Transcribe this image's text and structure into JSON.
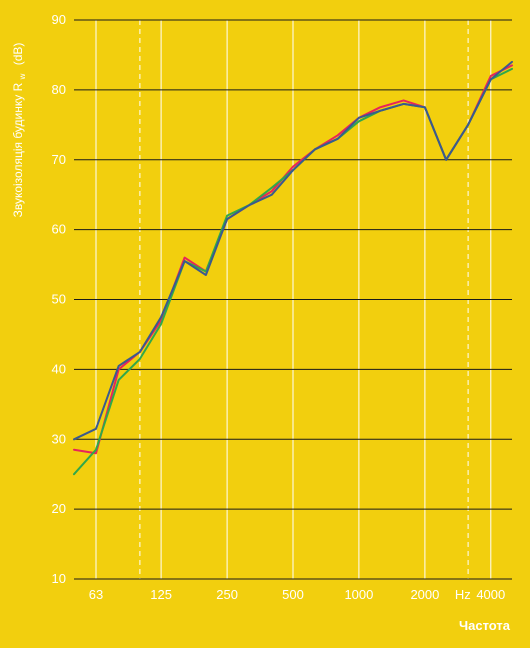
{
  "chart_data": {
    "type": "line",
    "ylabel": "Звукоізоляція будинку",
    "ylabel_sym": "R",
    "ylabel_sub": "w",
    "ylabel_unit": "(dB)",
    "xlabel": "Частота",
    "x_unit": "Hz",
    "ylim": [
      10,
      90
    ],
    "yticks": [
      10,
      20,
      30,
      40,
      50,
      60,
      70,
      80,
      90
    ],
    "x_scale": "log",
    "xlim": [
      50,
      5000
    ],
    "xtick_values": [
      63,
      125,
      250,
      500,
      1000,
      2000,
      4000
    ],
    "xtick_labels": [
      "63",
      "125",
      "250",
      "500",
      "1000",
      "2000",
      "4000"
    ],
    "solid_vlines": [
      63,
      125,
      250,
      500,
      1000,
      2000,
      4000
    ],
    "dashed_vlines": [
      100,
      3150
    ],
    "grid": "horizontal-black",
    "x": [
      50,
      63,
      80,
      100,
      125,
      160,
      200,
      250,
      315,
      400,
      500,
      630,
      800,
      1000,
      1250,
      1600,
      2000,
      2500,
      3150,
      4000,
      5000
    ],
    "series": [
      {
        "color": "#e8245a",
        "values": [
          28.5,
          28,
          40,
          42.5,
          47,
          56,
          54,
          61.5,
          63.5,
          65.5,
          69,
          71.5,
          73.5,
          76,
          77.5,
          78.5,
          77.5,
          70,
          75,
          82,
          83.5
        ]
      },
      {
        "color": "#31a84a",
        "values": [
          25,
          28.5,
          38.5,
          41.5,
          46.5,
          55.5,
          54,
          62,
          63.5,
          66,
          68.5,
          71.5,
          73,
          75.5,
          77,
          78,
          77.5,
          70,
          75,
          81.5,
          83
        ]
      },
      {
        "color": "#3b5a8e",
        "values": [
          30,
          31.5,
          40.5,
          42.5,
          47.5,
          55.5,
          53.5,
          61.5,
          63.5,
          65,
          68.5,
          71.5,
          73,
          76,
          77,
          78,
          77.5,
          70,
          75,
          81.5,
          84
        ]
      }
    ]
  }
}
